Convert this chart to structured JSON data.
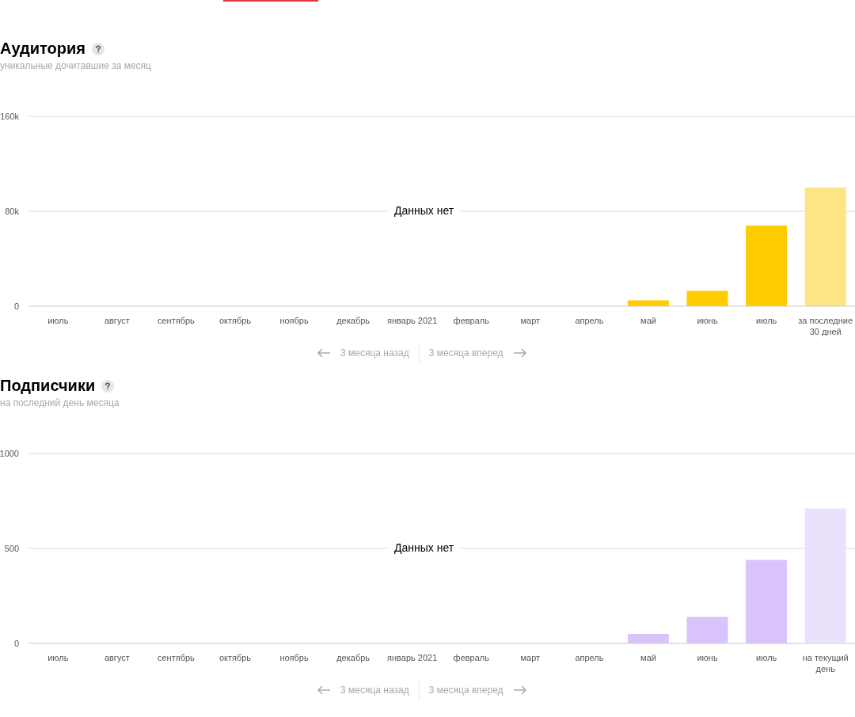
{
  "chart_data": [
    {
      "type": "bar",
      "title": "Аудитория",
      "subtitle": "уникальные дочитавшие за месяц",
      "categories": [
        "июль",
        "август",
        "сентябрь",
        "октябрь",
        "ноябрь",
        "декабрь",
        "январь 2021",
        "февраль",
        "март",
        "апрель",
        "май",
        "июнь",
        "июль",
        "за последние 30 дней"
      ],
      "values": [
        null,
        null,
        null,
        null,
        null,
        null,
        null,
        null,
        null,
        null,
        5000,
        13000,
        68000,
        100000
      ],
      "colors": [
        "#ffcc00",
        "#ffcc00",
        "#ffcc00",
        "#ffcc00",
        "#ffcc00",
        "#ffcc00",
        "#ffcc00",
        "#ffcc00",
        "#ffcc00",
        "#ffcc00",
        "#ffcc00",
        "#ffcc00",
        "#ffcc00",
        "#fde484"
      ],
      "ylim": [
        0,
        160000
      ],
      "yticks": [
        0,
        {
          "value": 80000,
          "label": "80k"
        },
        {
          "value": 160000,
          "label": "160k"
        }
      ],
      "grid": "y",
      "annotations": [
        "Данных нет",
        "3 месяца назад",
        "3 месяца вперед"
      ]
    },
    {
      "type": "bar",
      "title": "Подписчики",
      "subtitle": "на последний день месяца",
      "categories": [
        "июль",
        "август",
        "сентябрь",
        "октябрь",
        "ноябрь",
        "декабрь",
        "январь 2021",
        "февраль",
        "март",
        "апрель",
        "май",
        "июнь",
        "июль",
        "на текущий день"
      ],
      "values": [
        null,
        null,
        null,
        null,
        null,
        null,
        null,
        null,
        null,
        null,
        50,
        140,
        440,
        710
      ],
      "colors": [
        "#d8c4fa",
        "#d8c4fa",
        "#d8c4fa",
        "#d8c4fa",
        "#d8c4fa",
        "#d8c4fa",
        "#d8c4fa",
        "#d8c4fa",
        "#d8c4fa",
        "#d8c4fa",
        "#d8c4fa",
        "#d8c4fa",
        "#d8c4fa",
        "#ebe1fc"
      ],
      "ylim": [
        0,
        1000
      ],
      "yticks": [
        0,
        500,
        1000
      ],
      "grid": "y",
      "annotations": [
        "Данных нет",
        "3 месяца назад",
        "3 месяца вперед"
      ]
    }
  ]
}
